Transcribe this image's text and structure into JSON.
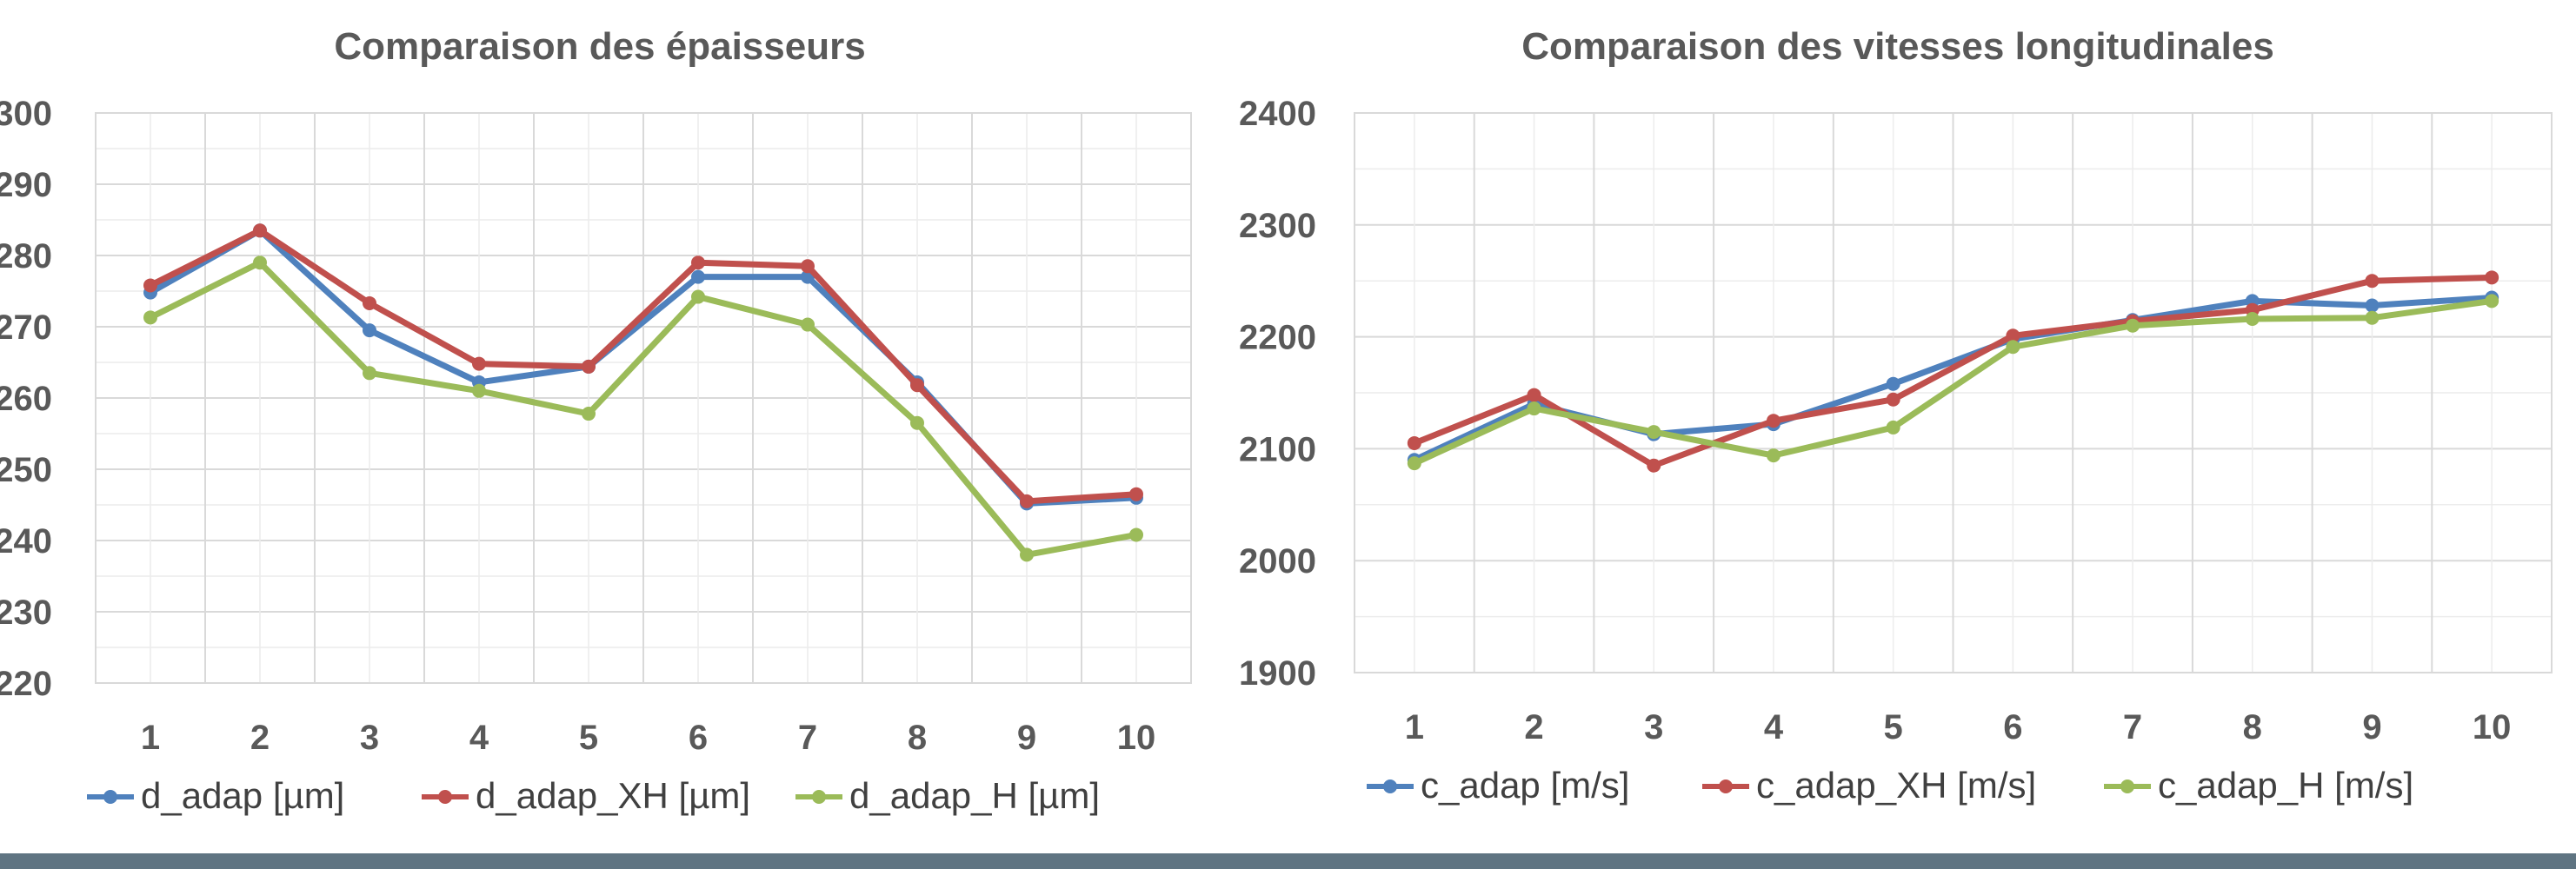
{
  "chart_data": [
    {
      "type": "line",
      "title": "Comparaison des épaisseurs",
      "xlabel": "",
      "ylabel": "",
      "categories": [
        "1",
        "2",
        "3",
        "4",
        "5",
        "6",
        "7",
        "8",
        "9",
        "10"
      ],
      "ylim": [
        220,
        300
      ],
      "ystep": 10,
      "yticks": [
        "220",
        "230",
        "240",
        "250",
        "260",
        "270",
        "280",
        "290",
        "300"
      ],
      "grid": true,
      "legend_position": "bottom",
      "series": [
        {
          "name": "d_adap [µm]",
          "color": "#4f81bd",
          "values": [
            274.8,
            283.5,
            269.5,
            262.2,
            264.4,
            277.0,
            277.0,
            262.2,
            245.2,
            246.0
          ]
        },
        {
          "name": "d_adap_XH [µm]",
          "color": "#c0504d",
          "values": [
            275.8,
            283.5,
            273.3,
            264.8,
            264.4,
            279.0,
            278.5,
            261.8,
            245.5,
            246.5
          ]
        },
        {
          "name": "d_adap_H [µm]",
          "color": "#9bbb59",
          "values": [
            271.3,
            279.0,
            263.5,
            261.0,
            257.8,
            274.2,
            270.3,
            256.5,
            238.0,
            240.8
          ]
        }
      ]
    },
    {
      "type": "line",
      "title": "Comparaison des vitesses longitudinales",
      "xlabel": "",
      "ylabel": "",
      "categories": [
        "1",
        "2",
        "3",
        "4",
        "5",
        "6",
        "7",
        "8",
        "9",
        "10"
      ],
      "ylim": [
        1900,
        2400
      ],
      "ystep": 100,
      "yticks": [
        "1900",
        "2000",
        "2100",
        "2200",
        "2300",
        "2400"
      ],
      "grid": true,
      "legend_position": "bottom",
      "series": [
        {
          "name": "c_adap [m/s]",
          "color": "#4f81bd",
          "values": [
            2090,
            2140,
            2113,
            2122,
            2158,
            2198,
            2215,
            2232,
            2228,
            2235
          ]
        },
        {
          "name": "c_adap_XH [m/s]",
          "color": "#c0504d",
          "values": [
            2105,
            2148,
            2085,
            2125,
            2144,
            2201,
            2214,
            2224,
            2250,
            2253
          ]
        },
        {
          "name": "c_adap_H [m/s]",
          "color": "#9bbb59",
          "values": [
            2087,
            2136,
            2115,
            2094,
            2119,
            2191,
            2210,
            2216,
            2217,
            2232
          ]
        }
      ]
    }
  ]
}
